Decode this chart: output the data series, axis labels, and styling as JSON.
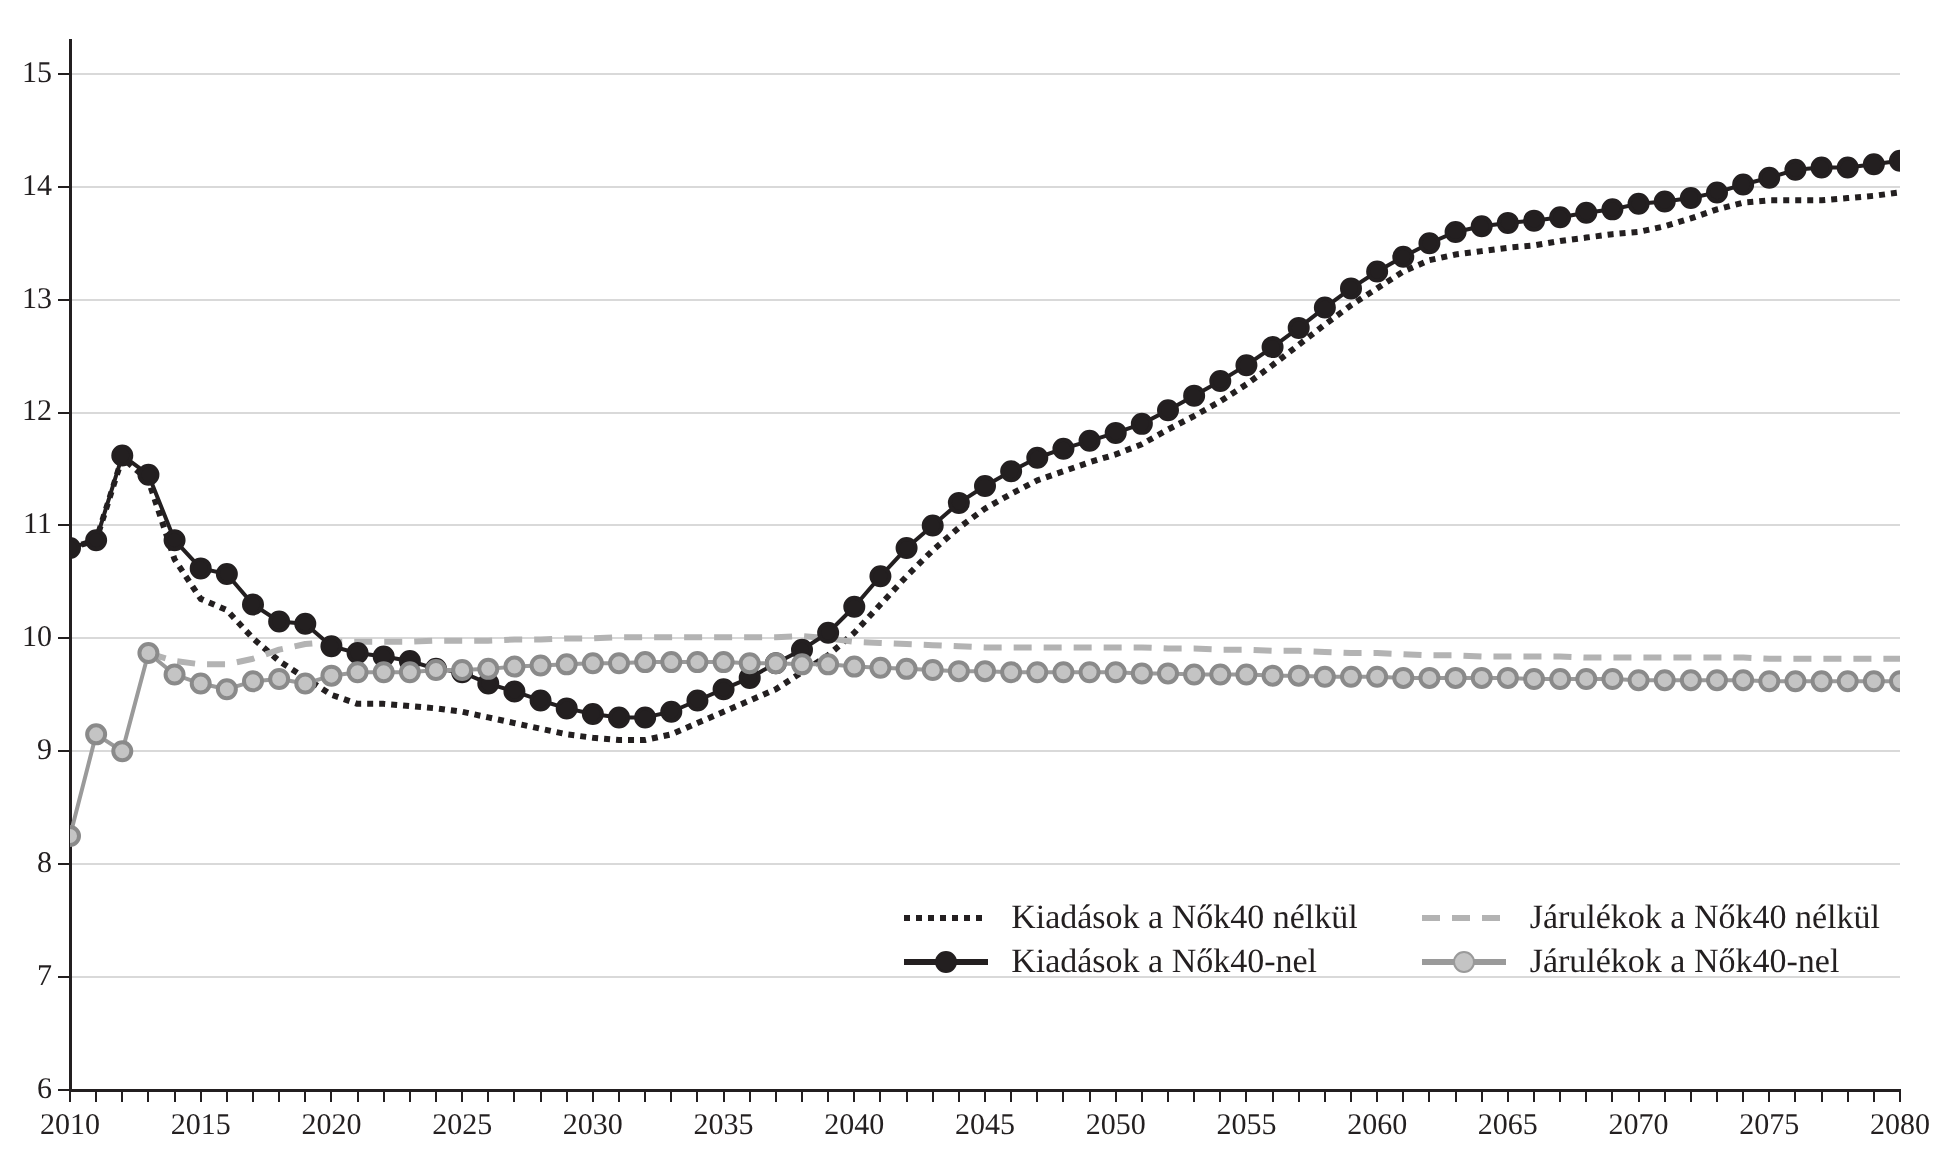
{
  "chart_data": {
    "type": "line",
    "x": [
      2010,
      2011,
      2012,
      2013,
      2014,
      2015,
      2016,
      2017,
      2018,
      2019,
      2020,
      2021,
      2022,
      2023,
      2024,
      2025,
      2026,
      2027,
      2028,
      2029,
      2030,
      2031,
      2032,
      2033,
      2034,
      2035,
      2036,
      2037,
      2038,
      2039,
      2040,
      2041,
      2042,
      2043,
      2044,
      2045,
      2046,
      2047,
      2048,
      2049,
      2050,
      2051,
      2052,
      2053,
      2054,
      2055,
      2056,
      2057,
      2058,
      2059,
      2060,
      2061,
      2062,
      2063,
      2064,
      2065,
      2066,
      2067,
      2068,
      2069,
      2070,
      2071,
      2072,
      2073,
      2074,
      2075,
      2076,
      2077,
      2078,
      2079,
      2080
    ],
    "series": [
      {
        "name": "Kiadások a Nők40 nélkül",
        "color": "#231f20",
        "line_style": "dotted",
        "marker": "none",
        "values": [
          10.8,
          10.87,
          11.6,
          11.4,
          10.7,
          10.35,
          10.25,
          10.0,
          9.8,
          9.65,
          9.5,
          9.42,
          9.42,
          9.4,
          9.38,
          9.35,
          9.3,
          9.25,
          9.2,
          9.15,
          9.12,
          9.1,
          9.1,
          9.15,
          9.25,
          9.35,
          9.45,
          9.55,
          9.7,
          9.85,
          10.05,
          10.3,
          10.55,
          10.78,
          10.98,
          11.15,
          11.28,
          11.4,
          11.48,
          11.56,
          11.63,
          11.72,
          11.85,
          11.97,
          12.1,
          12.25,
          12.42,
          12.6,
          12.78,
          12.95,
          13.1,
          13.25,
          13.35,
          13.4,
          13.43,
          13.46,
          13.48,
          13.52,
          13.55,
          13.58,
          13.6,
          13.65,
          13.72,
          13.8,
          13.86,
          13.88,
          13.88,
          13.88,
          13.9,
          13.92,
          13.95
        ]
      },
      {
        "name": "Járulékok a Nők40 nélkül",
        "color": "#b3b3b3",
        "line_style": "dashed",
        "marker": "none",
        "values": [
          null,
          null,
          null,
          9.87,
          9.8,
          9.77,
          9.77,
          9.82,
          9.9,
          9.95,
          9.97,
          9.97,
          9.97,
          9.97,
          9.98,
          9.98,
          9.98,
          9.99,
          9.99,
          10.0,
          10.0,
          10.01,
          10.01,
          10.01,
          10.01,
          10.01,
          10.01,
          10.01,
          10.02,
          10.0,
          9.97,
          9.96,
          9.95,
          9.94,
          9.93,
          9.92,
          9.92,
          9.92,
          9.92,
          9.92,
          9.92,
          9.92,
          9.91,
          9.91,
          9.9,
          9.9,
          9.89,
          9.89,
          9.88,
          9.87,
          9.87,
          9.86,
          9.85,
          9.85,
          9.84,
          9.84,
          9.84,
          9.84,
          9.83,
          9.83,
          9.83,
          9.83,
          9.83,
          9.83,
          9.83,
          9.82,
          9.82,
          9.82,
          9.82,
          9.82,
          9.82
        ]
      },
      {
        "name": "Kiadások a Nők40-nel",
        "color": "#231f20",
        "line_style": "solid",
        "marker": "circle",
        "values": [
          10.8,
          10.87,
          11.62,
          11.45,
          10.87,
          10.62,
          10.57,
          10.3,
          10.15,
          10.13,
          9.93,
          9.87,
          9.84,
          9.8,
          9.73,
          9.7,
          9.6,
          9.53,
          9.45,
          9.38,
          9.33,
          9.3,
          9.3,
          9.35,
          9.45,
          9.55,
          9.65,
          9.78,
          9.9,
          10.05,
          10.28,
          10.55,
          10.8,
          11.0,
          11.2,
          11.35,
          11.48,
          11.6,
          11.68,
          11.75,
          11.82,
          11.9,
          12.02,
          12.15,
          12.28,
          12.42,
          12.58,
          12.75,
          12.93,
          13.1,
          13.25,
          13.38,
          13.5,
          13.6,
          13.65,
          13.68,
          13.7,
          13.73,
          13.77,
          13.8,
          13.85,
          13.87,
          13.9,
          13.95,
          14.02,
          14.08,
          14.15,
          14.17,
          14.17,
          14.2,
          14.23
        ]
      },
      {
        "name": "Járulékok a Nők40-nel",
        "color": "#9a9a9a",
        "line_style": "solid",
        "marker": "circle",
        "values": [
          8.25,
          9.15,
          9.0,
          9.87,
          9.68,
          9.6,
          9.55,
          9.62,
          9.64,
          9.6,
          9.67,
          9.7,
          9.7,
          9.7,
          9.72,
          9.72,
          9.73,
          9.75,
          9.76,
          9.77,
          9.78,
          9.78,
          9.79,
          9.79,
          9.79,
          9.79,
          9.78,
          9.78,
          9.77,
          9.77,
          9.75,
          9.74,
          9.73,
          9.72,
          9.71,
          9.71,
          9.7,
          9.7,
          9.7,
          9.7,
          9.7,
          9.69,
          9.69,
          9.68,
          9.68,
          9.68,
          9.67,
          9.67,
          9.66,
          9.66,
          9.66,
          9.65,
          9.65,
          9.65,
          9.65,
          9.65,
          9.64,
          9.64,
          9.64,
          9.64,
          9.63,
          9.63,
          9.63,
          9.63,
          9.63,
          9.62,
          9.62,
          9.62,
          9.62,
          9.62,
          9.62
        ]
      }
    ],
    "xlim": [
      2010,
      2080
    ],
    "xticks": [
      2010,
      {
        "value": 2011,
        "label": null
      },
      {
        "value": 2012,
        "label": null
      },
      {
        "value": 2013,
        "label": null
      },
      {
        "value": 2014,
        "label": null
      },
      2015,
      {
        "value": 2016,
        "label": null
      },
      {
        "value": 2017,
        "label": null
      },
      {
        "value": 2018,
        "label": null
      },
      {
        "value": 2019,
        "label": null
      },
      2020,
      {
        "value": 2021,
        "label": null
      },
      {
        "value": 2022,
        "label": null
      },
      {
        "value": 2023,
        "label": null
      },
      {
        "value": 2024,
        "label": null
      },
      2025,
      {
        "value": 2026,
        "label": null
      },
      {
        "value": 2027,
        "label": null
      },
      {
        "value": 2028,
        "label": null
      },
      {
        "value": 2029,
        "label": null
      },
      2030,
      {
        "value": 2031,
        "label": null
      },
      {
        "value": 2032,
        "label": null
      },
      {
        "value": 2033,
        "label": null
      },
      {
        "value": 2034,
        "label": null
      },
      2035,
      {
        "value": 2036,
        "label": null
      },
      {
        "value": 2037,
        "label": null
      },
      {
        "value": 2038,
        "label": null
      },
      {
        "value": 2039,
        "label": null
      },
      2040,
      {
        "value": 2041,
        "label": null
      },
      {
        "value": 2042,
        "label": null
      },
      {
        "value": 2043,
        "label": null
      },
      {
        "value": 2044,
        "label": null
      },
      2045,
      {
        "value": 2046,
        "label": null
      },
      {
        "value": 2047,
        "label": null
      },
      {
        "value": 2048,
        "label": null
      },
      {
        "value": 2049,
        "label": null
      },
      2050,
      {
        "value": 2051,
        "label": null
      },
      {
        "value": 2052,
        "label": null
      },
      {
        "value": 2053,
        "label": null
      },
      {
        "value": 2054,
        "label": null
      },
      2055,
      {
        "value": 2056,
        "label": null
      },
      {
        "value": 2057,
        "label": null
      },
      {
        "value": 2058,
        "label": null
      },
      {
        "value": 2059,
        "label": null
      },
      2060,
      {
        "value": 2061,
        "label": null
      },
      {
        "value": 2062,
        "label": null
      },
      {
        "value": 2063,
        "label": null
      },
      {
        "value": 2064,
        "label": null
      },
      2065,
      {
        "value": 2066,
        "label": null
      },
      {
        "value": 2067,
        "label": null
      },
      {
        "value": 2068,
        "label": null
      },
      {
        "value": 2069,
        "label": null
      },
      2070,
      {
        "value": 2071,
        "label": null
      },
      {
        "value": 2072,
        "label": null
      },
      {
        "value": 2073,
        "label": null
      },
      {
        "value": 2074,
        "label": null
      },
      2075,
      {
        "value": 2076,
        "label": null
      },
      {
        "value": 2077,
        "label": null
      },
      {
        "value": 2078,
        "label": null
      },
      {
        "value": 2079,
        "label": null
      },
      2080
    ],
    "ylim": [
      6,
      15.3
    ],
    "yticks": [
      6,
      7,
      8,
      9,
      10,
      11,
      12,
      13,
      14,
      15
    ],
    "grid": "y",
    "legend": "bottom right"
  }
}
